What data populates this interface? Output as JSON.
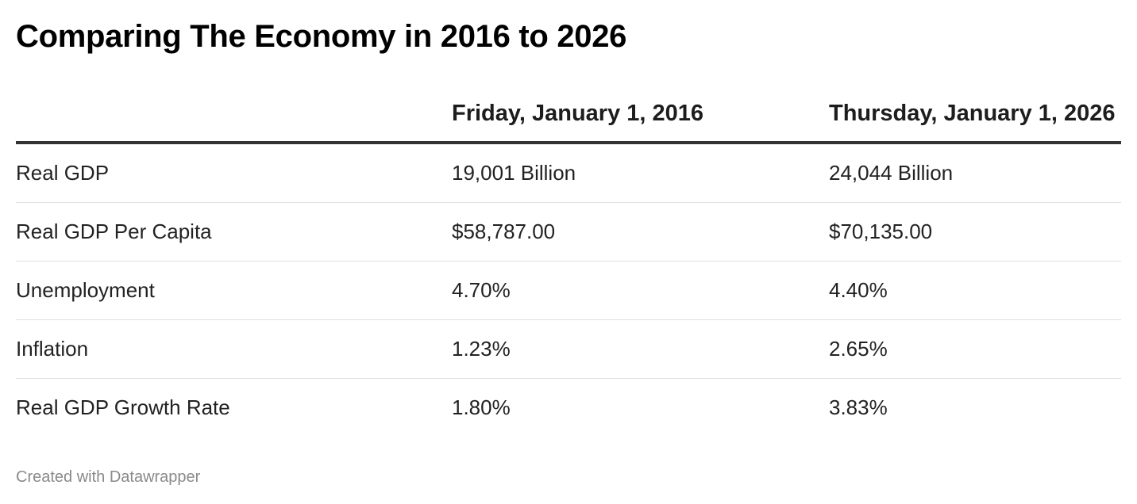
{
  "title": "Comparing The Economy in 2016 to 2026",
  "table": {
    "columns": [
      "Friday, January 1, 2016",
      "Thursday, January 1, 2026"
    ],
    "rows": [
      [
        "Real GDP",
        "19,001 Billion",
        "24,044 Billion"
      ],
      [
        "Real GDP Per Capita",
        "$58,787.00",
        "$70,135.00"
      ],
      [
        "Unemployment",
        "4.70%",
        "4.40%"
      ],
      [
        "Inflation",
        "1.23%",
        "2.65%"
      ],
      [
        "Real GDP Growth Rate",
        "1.80%",
        "3.83%"
      ]
    ]
  },
  "footer": "Created with Datawrapper"
}
